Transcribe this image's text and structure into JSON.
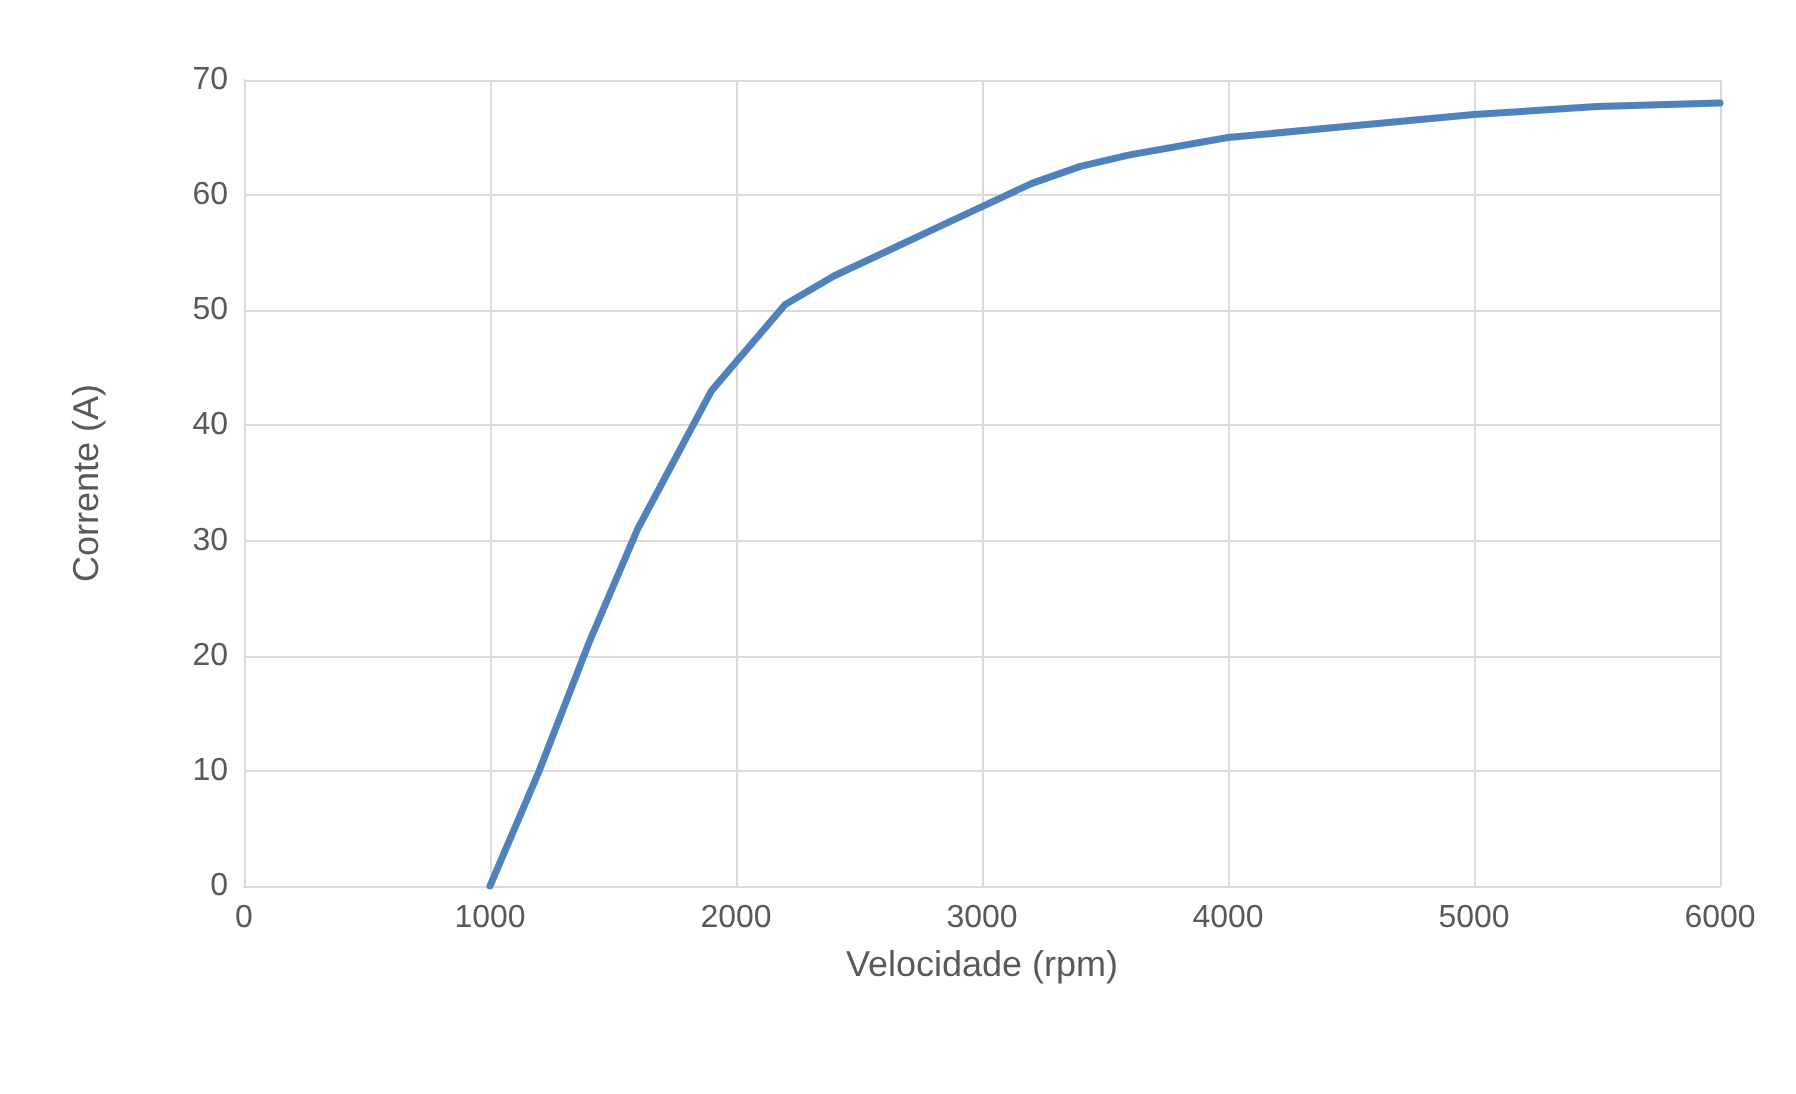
{
  "chart_data": {
    "type": "line",
    "xlabel": "Velocidade (rpm)",
    "ylabel": "Corrente (A)",
    "x": [
      1000,
      1200,
      1400,
      1600,
      1700,
      1800,
      1900,
      2000,
      2100,
      2200,
      2400,
      2600,
      2800,
      3000,
      3200,
      3400,
      3600,
      4000,
      4500,
      5000,
      5500,
      6000
    ],
    "series": [
      {
        "color": "#4f81bd",
        "values": [
          0,
          10,
          21,
          31,
          35,
          39,
          43,
          45.5,
          48,
          50.5,
          53,
          55,
          57,
          59,
          61,
          62.5,
          63.5,
          65,
          66,
          67,
          67.7,
          68
        ]
      }
    ],
    "xlim": [
      0,
      6000
    ],
    "xticks": [
      0,
      1000,
      2000,
      3000,
      4000,
      5000,
      6000
    ],
    "ylim": [
      0,
      70
    ],
    "yticks": [
      0,
      10,
      20,
      30,
      40,
      50,
      60,
      70
    ],
    "grid": true,
    "marker": "none",
    "line_style": "solid"
  }
}
